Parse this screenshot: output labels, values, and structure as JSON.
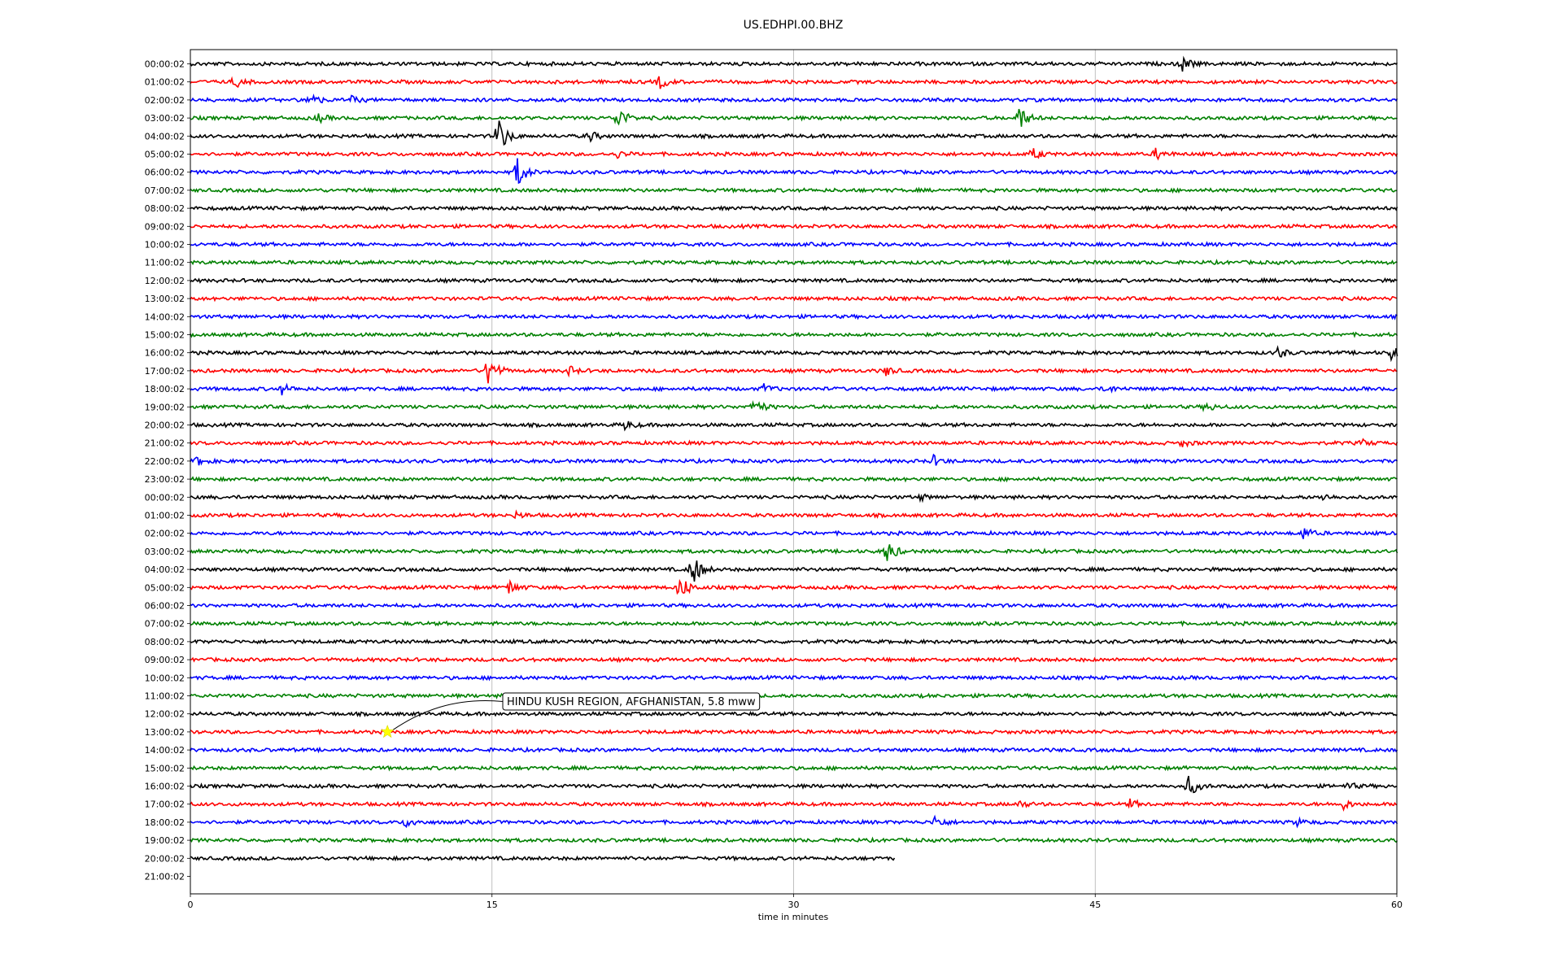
{
  "chart_data": {
    "type": "line",
    "title": "US.EDHPI.00.BHZ",
    "xlabel": "time in minutes",
    "ylabel": "",
    "xlim": [
      0,
      60
    ],
    "xticks": [
      0,
      15,
      30,
      45,
      60
    ],
    "grid": "vertical-at-x-ticks",
    "row_labels": [
      "00:00:02",
      "01:00:02",
      "02:00:02",
      "03:00:02",
      "04:00:02",
      "05:00:02",
      "06:00:02",
      "07:00:02",
      "08:00:02",
      "09:00:02",
      "10:00:02",
      "11:00:02",
      "12:00:02",
      "13:00:02",
      "14:00:02",
      "15:00:02",
      "16:00:02",
      "17:00:02",
      "18:00:02",
      "19:00:02",
      "20:00:02",
      "21:00:02",
      "22:00:02",
      "23:00:02",
      "00:00:02",
      "01:00:02",
      "02:00:02",
      "03:00:02",
      "04:00:02",
      "05:00:02",
      "06:00:02",
      "07:00:02",
      "08:00:02",
      "09:00:02",
      "10:00:02",
      "11:00:02",
      "12:00:02",
      "13:00:02",
      "14:00:02",
      "15:00:02",
      "16:00:02",
      "17:00:02",
      "18:00:02",
      "19:00:02",
      "20:00:02",
      "21:00:02"
    ],
    "color_cycle": [
      "#000000",
      "#ff0000",
      "#0000ff",
      "#008000"
    ],
    "last_row_end_minute": 35,
    "empty_rows": [
      45
    ],
    "events": [
      {
        "row": 0,
        "minute": 49.3,
        "amp": 0.7
      },
      {
        "row": 1,
        "minute": 2.2,
        "amp": 0.5
      },
      {
        "row": 1,
        "minute": 23.3,
        "amp": 0.6
      },
      {
        "row": 2,
        "minute": 5.9,
        "amp": 0.7
      },
      {
        "row": 2,
        "minute": 7.9,
        "amp": 0.4
      },
      {
        "row": 3,
        "minute": 21.2,
        "amp": 1.2
      },
      {
        "row": 3,
        "minute": 41.2,
        "amp": 1.2
      },
      {
        "row": 3,
        "minute": 6.3,
        "amp": 0.4
      },
      {
        "row": 4,
        "minute": 15.3,
        "amp": 1.8
      },
      {
        "row": 4,
        "minute": 19.8,
        "amp": 0.5
      },
      {
        "row": 5,
        "minute": 41.9,
        "amp": 0.5
      },
      {
        "row": 5,
        "minute": 48.0,
        "amp": 0.5
      },
      {
        "row": 5,
        "minute": 21.2,
        "amp": 0.3
      },
      {
        "row": 6,
        "minute": 16.2,
        "amp": 1.6
      },
      {
        "row": 16,
        "minute": 54.0,
        "amp": 0.6
      },
      {
        "row": 16,
        "minute": 59.7,
        "amp": 0.6
      },
      {
        "row": 17,
        "minute": 14.8,
        "amp": 1.6
      },
      {
        "row": 17,
        "minute": 34.5,
        "amp": 0.5
      },
      {
        "row": 17,
        "minute": 18.8,
        "amp": 0.4
      },
      {
        "row": 18,
        "minute": 4.5,
        "amp": 0.5
      },
      {
        "row": 18,
        "minute": 28.5,
        "amp": 0.4
      },
      {
        "row": 18,
        "minute": 45.5,
        "amp": 0.4
      },
      {
        "row": 19,
        "minute": 28.0,
        "amp": 0.9
      },
      {
        "row": 19,
        "minute": 50.5,
        "amp": 0.4
      },
      {
        "row": 20,
        "minute": 21.6,
        "amp": 0.4
      },
      {
        "row": 21,
        "minute": 49.3,
        "amp": 0.3
      },
      {
        "row": 21,
        "minute": 58.2,
        "amp": 0.3
      },
      {
        "row": 22,
        "minute": 0.3,
        "amp": 0.4
      },
      {
        "row": 22,
        "minute": 36.9,
        "amp": 0.5
      },
      {
        "row": 24,
        "minute": 36.2,
        "amp": 0.3
      },
      {
        "row": 24,
        "minute": 56.3,
        "amp": 0.3
      },
      {
        "row": 25,
        "minute": 16.2,
        "amp": 0.3
      },
      {
        "row": 26,
        "minute": 55.3,
        "amp": 0.6
      },
      {
        "row": 27,
        "minute": 34.6,
        "amp": 1.2
      },
      {
        "row": 28,
        "minute": 24.9,
        "amp": 1.8
      },
      {
        "row": 29,
        "minute": 24.3,
        "amp": 1.4
      },
      {
        "row": 29,
        "minute": 15.8,
        "amp": 0.7
      },
      {
        "row": 40,
        "minute": 49.6,
        "amp": 1.1
      },
      {
        "row": 40,
        "minute": 57.5,
        "amp": 0.3
      },
      {
        "row": 41,
        "minute": 57.2,
        "amp": 0.6
      },
      {
        "row": 41,
        "minute": 46.7,
        "amp": 0.4
      },
      {
        "row": 41,
        "minute": 41.2,
        "amp": 0.3
      },
      {
        "row": 42,
        "minute": 10.7,
        "amp": 0.6
      },
      {
        "row": 42,
        "minute": 37.0,
        "amp": 0.6
      },
      {
        "row": 42,
        "minute": 55.0,
        "amp": 0.3
      }
    ],
    "annotation": {
      "text": "HINDU KUSH REGION, AFGHANISTAN, 5.8 mww",
      "row": 37,
      "minute": 9.8,
      "marker": "star",
      "marker_color": "#ffff00"
    }
  }
}
